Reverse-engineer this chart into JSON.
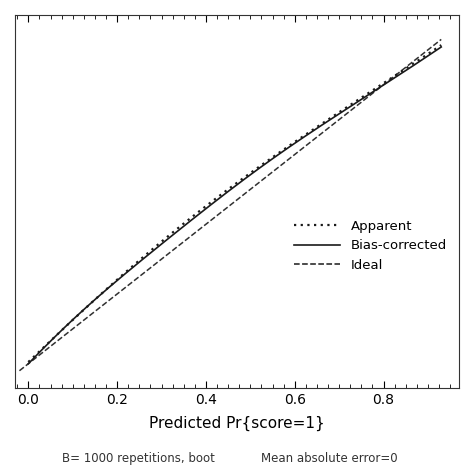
{
  "xlabel": "Predicted Pr{score=1}",
  "xlim": [
    -0.03,
    0.97
  ],
  "ylim": [
    -0.07,
    1.0
  ],
  "xticks": [
    0.0,
    0.2,
    0.4,
    0.6,
    0.8
  ],
  "background_color": "#ffffff",
  "subtitle_left": "B= 1000 repetitions, boot",
  "subtitle_right": "Mean absolute error=0",
  "legend_labels": [
    "Apparent",
    "Bias-corrected",
    "Ideal"
  ],
  "line_color": "#1a1a1a",
  "fig_width": 4.74,
  "fig_height": 4.74,
  "dpi": 100
}
